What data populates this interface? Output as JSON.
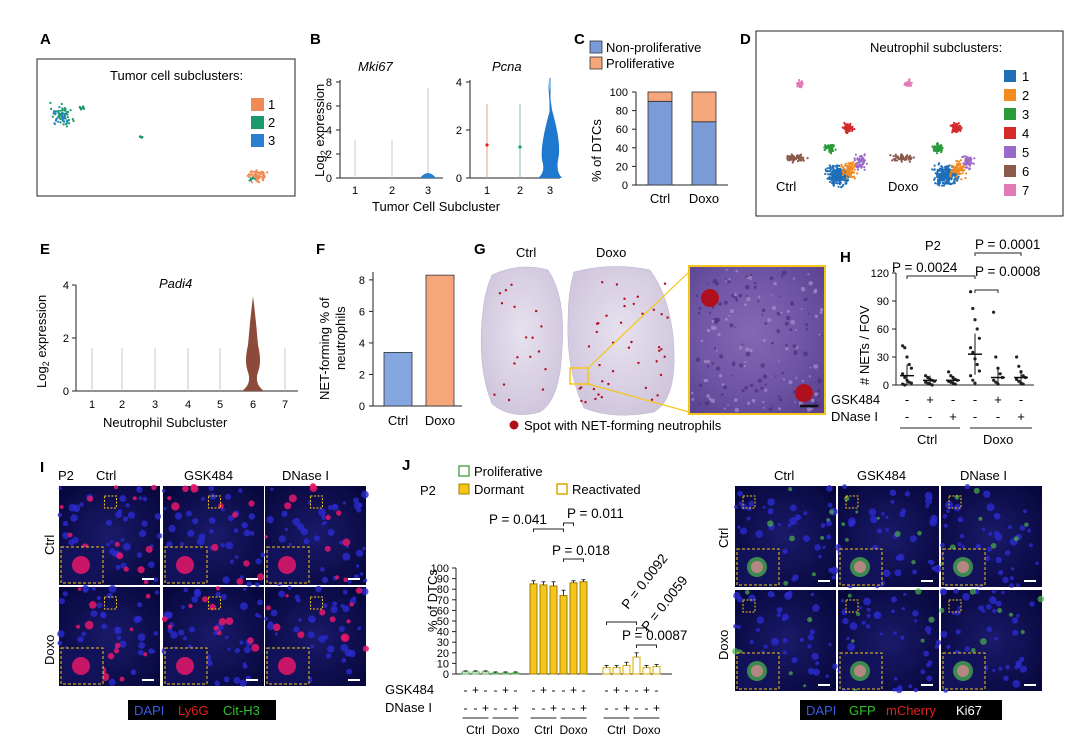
{
  "colors": {
    "sub1": "#ef8a55",
    "sub2": "#1a9a6a",
    "sub3": "#2a7fd0",
    "nonprolif": "#7b9bd8",
    "prolif": "#f5a67a",
    "ctrl_bar": "#86a6e0",
    "doxo_bar": "#f5a67a",
    "n1": "#1f6fb8",
    "n2": "#f58a1f",
    "n3": "#2a9a3a",
    "n4": "#d42a2a",
    "n5": "#9a6ac8",
    "n6": "#8c5a4a",
    "n7": "#e27ab8",
    "padi6": "#8b4a3a",
    "yellow": "#f5c518",
    "tissue": "#cfc6dc",
    "netspot": "#b0101e",
    "gfp": "#4bb04b",
    "mcherry": "#e01818"
  },
  "panels": {
    "A": {
      "letter": "A",
      "title": "Tumor cell subclusters:",
      "legend": [
        "1",
        "2",
        "3"
      ]
    },
    "B": {
      "letter": "B",
      "gene1": "Mki67",
      "gene2": "Pcna",
      "ylabel": "Log2 expression",
      "ylabel_base": "Log",
      "ylabel_sub": "2",
      "ylabel_rest": " expression",
      "xlabel": "Tumor Cell Subcluster",
      "xticks": [
        "1",
        "2",
        "3"
      ],
      "yticks_left": [
        "0",
        "2",
        "4",
        "6",
        "8"
      ],
      "yticks_right": [
        "0",
        "2",
        "4"
      ]
    },
    "C": {
      "letter": "C",
      "legend": [
        "Non-proliferative",
        "Proliferative"
      ],
      "ylabel": "% of DTCs",
      "yticks": [
        "0",
        "20",
        "40",
        "60",
        "80",
        "100"
      ],
      "xticks": [
        "Ctrl",
        "Doxo"
      ]
    },
    "D": {
      "letter": "D",
      "title": "Neutrophil subclusters:",
      "legend": [
        "1",
        "2",
        "3",
        "4",
        "5",
        "6",
        "7"
      ],
      "left_label": "Ctrl",
      "right_label": "Doxo"
    },
    "E": {
      "letter": "E",
      "gene": "Padi4",
      "ylabel_base": "Log",
      "ylabel_sub": "2",
      "ylabel_rest": " expression",
      "xlabel": "Neutrophil Subcluster",
      "xticks": [
        "1",
        "2",
        "3",
        "4",
        "5",
        "6",
        "7"
      ],
      "yticks": [
        "0",
        "2",
        "4"
      ]
    },
    "F": {
      "letter": "F",
      "ylabel_line1": "NET-forming % of",
      "ylabel_line2": "neutrophils",
      "yticks": [
        "0",
        "2",
        "4",
        "6",
        "8"
      ],
      "xticks": [
        "Ctrl",
        "Doxo"
      ]
    },
    "G": {
      "letter": "G",
      "left_label": "Ctrl",
      "right_label": "Doxo",
      "legend": "Spot with NET-forming neutrophils"
    },
    "H": {
      "letter": "H",
      "header": "P2",
      "p1": "P = 0.0024",
      "p2": "P = 0.0001",
      "p3": "P = 0.0008",
      "ylabel": "# NETs / FOV",
      "yticks": [
        "0",
        "30",
        "60",
        "90",
        "120"
      ],
      "row1_label": "GSK484",
      "row2_label": "DNase I",
      "row1": [
        "-",
        "+",
        "-",
        "-",
        "+",
        "-"
      ],
      "row2": [
        "-",
        "-",
        "+",
        "-",
        "-",
        "+"
      ],
      "groups": [
        "Ctrl",
        "Doxo"
      ]
    },
    "I": {
      "letter": "I",
      "header": "P2",
      "cols": [
        "Ctrl",
        "GSK484",
        "DNase I"
      ],
      "rows": [
        "Ctrl",
        "Doxo"
      ],
      "legend": [
        "DAPI",
        "Ly6G",
        "Cit-H3"
      ]
    },
    "J": {
      "letter": "J",
      "header": "P2",
      "legend": [
        "Proliferative",
        "Dormant",
        "Reactivated"
      ],
      "ylabel": "% of DTCs",
      "yticks": [
        "0",
        "10",
        "20",
        "30",
        "40",
        "50",
        "60",
        "70",
        "80",
        "90",
        "100"
      ],
      "p1": "P = 0.041",
      "p2": "P = 0.011",
      "p3": "P = 0.018",
      "p4": "P = 0.0092",
      "p5": "P = 0.0059",
      "p6": "P = 0.0087",
      "row1_label": "GSK484",
      "row2_label": "DNase I",
      "row1": [
        "-",
        "+",
        "-",
        "-",
        "+",
        "-"
      ],
      "row2": [
        "-",
        "-",
        "+",
        "-",
        "-",
        "+"
      ],
      "groups": [
        "Ctrl",
        "Doxo",
        "Ctrl",
        "Doxo",
        "Ctrl",
        "Doxo"
      ]
    },
    "K": {
      "cols": [
        "Ctrl",
        "GSK484",
        "DNase I"
      ],
      "rows": [
        "Ctrl",
        "Doxo"
      ],
      "legend": [
        "DAPI",
        "GFP",
        "mCherry",
        "Ki67"
      ]
    }
  },
  "chart_data": [
    {
      "type": "bar",
      "title": "C",
      "categories": [
        "Ctrl",
        "Doxo"
      ],
      "series": [
        {
          "name": "Non-proliferative",
          "values": [
            90,
            68
          ]
        },
        {
          "name": "Proliferative",
          "values": [
            10,
            32
          ]
        }
      ],
      "ylabel": "% of DTCs",
      "ylim": [
        0,
        100
      ],
      "stacked": true
    },
    {
      "type": "bar",
      "title": "F",
      "categories": [
        "Ctrl",
        "Doxo"
      ],
      "values": [
        3.4,
        8.3
      ],
      "ylabel": "NET-forming % of neutrophils",
      "ylim": [
        0,
        8.5
      ]
    },
    {
      "type": "scatter",
      "title": "H",
      "categories": [
        "Ctrl -/-",
        "Ctrl GSK484",
        "Ctrl DNase I",
        "Doxo -/-",
        "Doxo GSK484",
        "Doxo DNase I"
      ],
      "means": [
        10,
        5,
        5,
        33,
        8,
        8
      ],
      "sd": [
        12,
        5,
        4,
        22,
        10,
        8
      ],
      "points": [
        [
          42,
          40,
          30,
          22,
          18,
          12,
          8,
          5,
          3,
          2,
          1,
          0
        ],
        [
          10,
          8,
          6,
          5,
          4,
          3,
          2,
          1,
          0
        ],
        [
          14,
          10,
          8,
          6,
          5,
          4,
          3,
          2,
          1
        ],
        [
          100,
          82,
          70,
          60,
          50,
          40,
          35,
          28,
          22,
          15,
          10,
          5,
          2
        ],
        [
          78,
          30,
          18,
          12,
          8,
          5,
          3,
          1
        ],
        [
          30,
          20,
          14,
          10,
          8,
          6,
          4,
          2,
          1
        ]
      ],
      "ylabel": "# NETs / FOV",
      "ylim": [
        0,
        120
      ]
    },
    {
      "type": "bar",
      "title": "J",
      "categories": [
        "Ctrl",
        "GSK484",
        "DNase I",
        "Doxo",
        "Doxo+GSK484",
        "Doxo+DNase I"
      ],
      "series": [
        {
          "name": "Proliferative",
          "values": [
            2,
            2,
            2,
            1,
            1,
            1
          ]
        },
        {
          "name": "Dormant",
          "values": [
            85,
            84,
            83,
            74,
            86,
            87
          ]
        },
        {
          "name": "Reactivated",
          "values": [
            6,
            6,
            8,
            16,
            6,
            7
          ]
        }
      ],
      "errors": [
        [
          1,
          1,
          1,
          1,
          1,
          1
        ],
        [
          3,
          3,
          4,
          5,
          2,
          2
        ],
        [
          2,
          2,
          3,
          4,
          2,
          2
        ]
      ],
      "ylabel": "% of DTCs",
      "ylim": [
        0,
        100
      ]
    }
  ]
}
